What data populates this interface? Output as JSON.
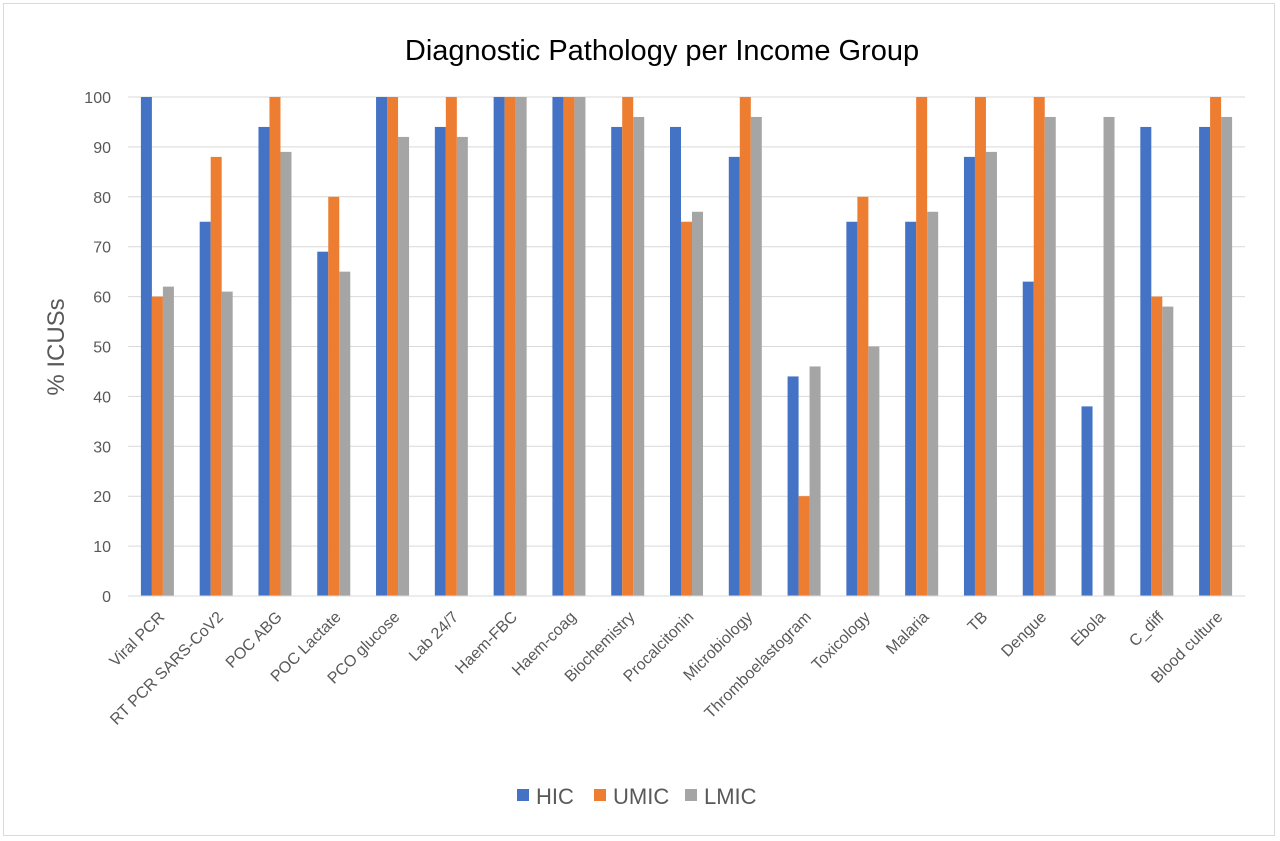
{
  "chart_data": {
    "type": "bar",
    "title": "Diagnostic Pathology per Income Group",
    "xlabel": "",
    "ylabel": "% ICUSs",
    "ylim": [
      0,
      100
    ],
    "yticks": [
      0,
      10,
      20,
      30,
      40,
      50,
      60,
      70,
      80,
      90,
      100
    ],
    "grid": true,
    "legend_position": "bottom",
    "categories": [
      "Viral PCR",
      "RT PCR SARS-CoV2",
      "POC ABG",
      "POC Lactate",
      "PCO glucose",
      "Lab 24/7",
      "Haem-FBC",
      "Haem-coag",
      "Biochemistry",
      "Procalcitonin",
      "Microbiology",
      "Thromboelastogram",
      "Toxicology",
      "Malaria",
      "TB",
      "Dengue",
      "Ebola",
      "C_diff",
      "Blood culture"
    ],
    "series": [
      {
        "name": "HIC",
        "color": "#4472c4",
        "values": [
          100,
          75,
          94,
          69,
          100,
          94,
          100,
          100,
          94,
          94,
          88,
          44,
          75,
          75,
          88,
          63,
          38,
          94,
          94
        ]
      },
      {
        "name": "UMIC",
        "color": "#ed7d31",
        "values": [
          60,
          88,
          100,
          80,
          100,
          100,
          100,
          100,
          100,
          75,
          100,
          20,
          80,
          100,
          100,
          100,
          0,
          60,
          100
        ]
      },
      {
        "name": "LMIC",
        "color": "#a5a5a5",
        "values": [
          62,
          61,
          89,
          65,
          92,
          92,
          100,
          100,
          96,
          77,
          96,
          46,
          50,
          77,
          89,
          96,
          96,
          58,
          96
        ]
      }
    ]
  }
}
